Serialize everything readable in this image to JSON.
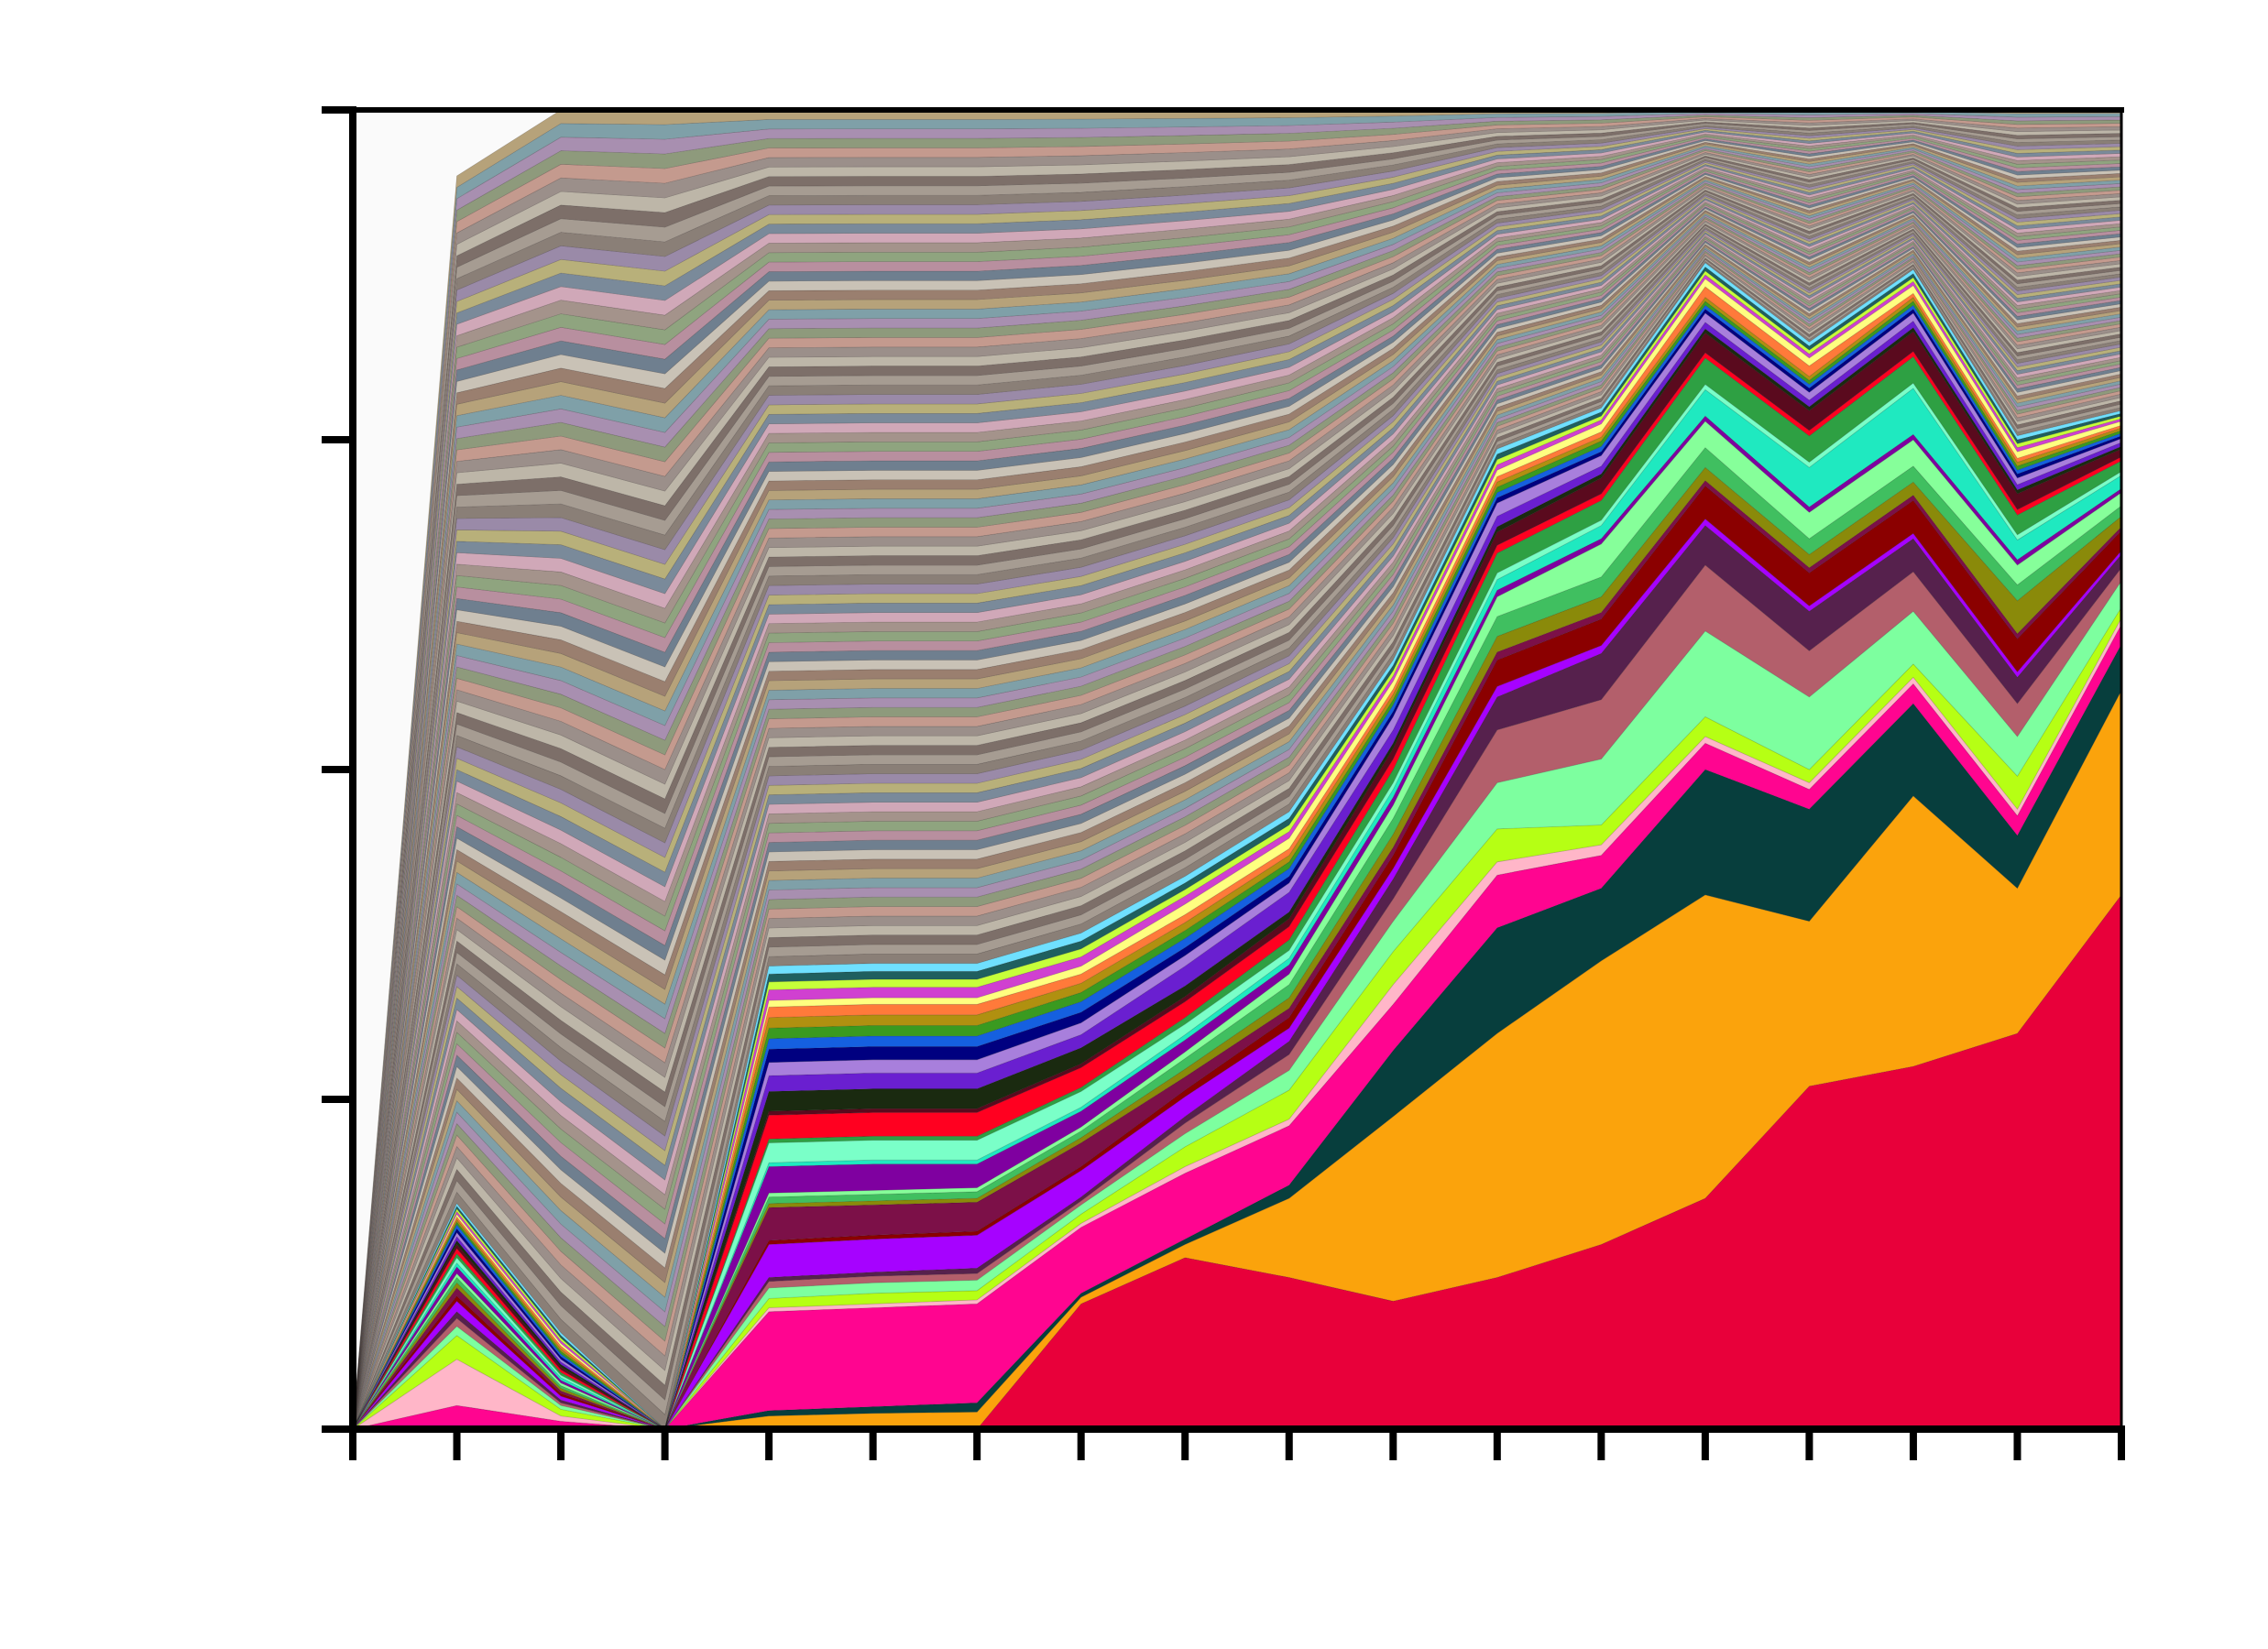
{
  "chart_data": {
    "type": "area",
    "stacking": "percent",
    "title": "",
    "xlabel": "",
    "ylabel": "",
    "x": [
      0,
      1,
      2,
      3,
      4,
      5,
      6,
      7,
      8,
      9,
      10,
      11,
      12,
      13,
      14,
      15,
      16,
      17
    ],
    "ylim": [
      0,
      100
    ],
    "y_ticks": [
      0,
      25,
      50,
      75,
      100
    ],
    "x_tick_labels_shown": false,
    "y_tick_labels_shown": false,
    "grid": false,
    "legend": "none",
    "series": [
      {
        "color": "#e8003a",
        "values": [
          0,
          0,
          0,
          0,
          0,
          0,
          0,
          9.5,
          13.0,
          11.5,
          9.7,
          11.5,
          14.0,
          17.5,
          26.0,
          27.5,
          30.0,
          40.5
        ]
      },
      {
        "color": "#fba30c",
        "values": [
          0,
          0,
          0,
          0,
          1.0,
          1.2,
          1.3,
          0.5,
          1.0,
          6.0,
          14.0,
          18.5,
          21.5,
          23.0,
          12.5,
          20.5,
          11.0,
          15.5
        ]
      },
      {
        "color": "#073e3d",
        "values": [
          0,
          0,
          0,
          0,
          0.4,
          0.5,
          0.7,
          0.3,
          0.4,
          1.0,
          5.0,
          8.0,
          5.5,
          9.5,
          8.5,
          7.0,
          4.0,
          3.5
        ]
      },
      {
        "color": "#ff0590",
        "values": [
          0,
          1.8,
          0.6,
          0,
          7.5,
          7.5,
          7.5,
          5.0,
          5.0,
          4.5,
          3.5,
          4.0,
          2.5,
          2.0,
          1.5,
          1.5,
          1.5,
          1.5
        ]
      },
      {
        "color": "#ffb6c8",
        "values": [
          0,
          3.5,
          0.4,
          0,
          0.3,
          0.3,
          0.3,
          0.3,
          0.5,
          0.5,
          1.5,
          1.0,
          0.8,
          0.5,
          0.5,
          0.5,
          0.5,
          0.5
        ]
      },
      {
        "color": "#b6ff14",
        "values": [
          0,
          1.8,
          0.5,
          0,
          0.7,
          0.8,
          0.7,
          0.7,
          1.5,
          2.2,
          2.5,
          2.5,
          1.5,
          1.5,
          1.0,
          1.0,
          2.5,
          0.8
        ]
      },
      {
        "color": "#7dff9f",
        "values": [
          0,
          0.7,
          0.3,
          0,
          0.8,
          0.8,
          0.8,
          0.7,
          1.0,
          1.5,
          2.3,
          3.5,
          5.0,
          6.5,
          5.5,
          4.0,
          3.0,
          2.0
        ]
      },
      {
        "color": "#b35f6b",
        "values": [
          0,
          0.6,
          0.2,
          0,
          0.5,
          0.5,
          0.5,
          0.3,
          0.8,
          1.2,
          1.7,
          4.0,
          4.5,
          5.0,
          3.5,
          3.0,
          2.5,
          1.0
        ]
      },
      {
        "color": "#56214d",
        "values": [
          0,
          0.5,
          0.2,
          0,
          0.3,
          0.3,
          0.4,
          0.3,
          0.5,
          1.0,
          1.5,
          2.5,
          3.5,
          3.0,
          3.0,
          2.5,
          2.0,
          1.0
        ]
      },
      {
        "color": "#a602ff",
        "values": [
          0,
          0.8,
          0.3,
          0,
          2.5,
          2.5,
          2.5,
          2.0,
          1.5,
          1.0,
          0.8,
          0.8,
          0.6,
          0.5,
          0.4,
          0.4,
          0.4,
          0.3
        ]
      },
      {
        "color": "#8b0000",
        "values": [
          0,
          0.4,
          0.2,
          0,
          0.3,
          0.3,
          0.3,
          0.3,
          0.5,
          0.8,
          1.0,
          2.0,
          2.0,
          2.5,
          2.5,
          2.5,
          2.5,
          1.5
        ]
      },
      {
        "color": "#7c1048",
        "values": [
          0,
          0.6,
          0.2,
          0,
          2.5,
          2.3,
          2.2,
          1.8,
          1.0,
          0.7,
          0.6,
          0.6,
          0.5,
          0.4,
          0.4,
          0.4,
          0.4,
          0.3
        ]
      },
      {
        "color": "#8a8a0a",
        "values": [
          0,
          0.4,
          0.2,
          0,
          0.3,
          0.3,
          0.3,
          0.4,
          0.6,
          0.8,
          1.0,
          1.2,
          1.2,
          1.0,
          1.0,
          1.0,
          2.5,
          0.8
        ]
      },
      {
        "color": "#40bf60",
        "values": [
          0,
          0.4,
          0.2,
          0,
          0.5,
          0.5,
          0.5,
          0.5,
          0.8,
          1.0,
          1.2,
          1.5,
          1.5,
          1.5,
          1.2,
          1.2,
          1.2,
          0.8
        ]
      },
      {
        "color": "#86ff9a",
        "values": [
          0,
          0.3,
          0.2,
          0,
          0.3,
          0.3,
          0.3,
          0.3,
          0.5,
          0.8,
          1.0,
          1.5,
          2.5,
          2.0,
          2.0,
          2.0,
          1.5,
          1.0
        ]
      },
      {
        "color": "#7f00a0",
        "values": [
          0,
          0.5,
          0.2,
          0,
          2.0,
          2.0,
          1.8,
          1.2,
          0.9,
          0.7,
          0.6,
          0.5,
          0.4,
          0.4,
          0.4,
          0.4,
          0.4,
          0.3
        ]
      },
      {
        "color": "#1fe9c0",
        "values": [
          0,
          0.3,
          0.2,
          0,
          0.3,
          0.3,
          0.3,
          0.3,
          0.4,
          0.5,
          0.6,
          0.8,
          1.0,
          2.0,
          3.0,
          3.5,
          1.5,
          1.0
        ]
      },
      {
        "color": "#7affc8",
        "values": [
          0,
          0.4,
          0.2,
          0,
          1.5,
          1.5,
          1.5,
          1.2,
          0.8,
          0.6,
          0.5,
          0.5,
          0.4,
          0.4,
          0.4,
          0.4,
          0.4,
          0.3
        ]
      },
      {
        "color": "#2ea043",
        "values": [
          0,
          0.3,
          0.2,
          0,
          0.3,
          0.3,
          0.3,
          0.3,
          0.5,
          0.8,
          1.0,
          1.5,
          1.5,
          2.0,
          2.0,
          2.0,
          1.5,
          0.8
        ]
      },
      {
        "color": "#ff0020",
        "values": [
          0,
          0.4,
          0.2,
          0,
          1.8,
          1.8,
          1.8,
          1.5,
          1.2,
          1.0,
          0.8,
          0.6,
          0.5,
          0.4,
          0.4,
          0.4,
          0.4,
          0.3
        ]
      },
      {
        "color": "#5a0a1e",
        "values": [
          0,
          0.3,
          0.2,
          0,
          0.3,
          0.3,
          0.3,
          0.3,
          0.4,
          0.6,
          0.8,
          1.0,
          1.2,
          1.5,
          1.5,
          1.5,
          1.2,
          0.6
        ]
      },
      {
        "color": "#1a2a10",
        "values": [
          0,
          0.3,
          0.2,
          0,
          1.5,
          1.5,
          1.5,
          1.2,
          0.8,
          0.5,
          0.4,
          0.4,
          0.3,
          0.3,
          0.3,
          0.3,
          0.3,
          0.2
        ]
      },
      {
        "color": "#6a1fd0",
        "values": [
          0,
          0.3,
          0.2,
          0,
          1.2,
          1.2,
          1.2,
          1.0,
          1.5,
          1.5,
          1.0,
          0.8,
          0.6,
          0.5,
          0.5,
          0.5,
          0.4,
          0.3
        ]
      },
      {
        "color": "#a87fdc",
        "values": [
          0,
          0.3,
          0.2,
          0,
          1.0,
          1.0,
          1.0,
          0.9,
          0.8,
          0.7,
          1.0,
          1.0,
          0.8,
          0.7,
          0.6,
          0.6,
          0.5,
          0.3
        ]
      },
      {
        "color": "#000080",
        "values": [
          0,
          0.3,
          0.2,
          0,
          1.0,
          1.0,
          1.0,
          0.8,
          0.6,
          0.5,
          0.4,
          0.4,
          0.3,
          0.3,
          0.3,
          0.3,
          0.3,
          0.2
        ]
      },
      {
        "color": "#1560e0",
        "values": [
          0,
          0.3,
          0.2,
          0,
          0.8,
          0.8,
          0.8,
          0.8,
          0.7,
          0.6,
          0.5,
          0.4,
          0.4,
          0.3,
          0.3,
          0.3,
          0.3,
          0.2
        ]
      },
      {
        "color": "#3a9a20",
        "values": [
          0,
          0.2,
          0.2,
          0,
          0.8,
          0.8,
          0.8,
          0.7,
          0.6,
          0.5,
          0.4,
          0.4,
          0.4,
          0.3,
          0.3,
          0.3,
          0.3,
          0.2
        ]
      },
      {
        "color": "#b09010",
        "values": [
          0,
          0.2,
          0.2,
          0,
          0.8,
          0.8,
          0.8,
          0.7,
          0.6,
          0.5,
          0.4,
          0.4,
          0.3,
          0.3,
          0.3,
          0.3,
          0.3,
          0.2
        ]
      },
      {
        "color": "#ff7a3a",
        "values": [
          0,
          0.2,
          0.2,
          0,
          0.8,
          0.8,
          0.8,
          0.7,
          0.6,
          0.5,
          0.4,
          0.4,
          0.4,
          0.8,
          0.8,
          0.3,
          0.3,
          0.2
        ]
      },
      {
        "color": "#ffff80",
        "values": [
          0,
          0.2,
          0.2,
          0,
          0.5,
          0.5,
          0.5,
          0.6,
          0.8,
          0.8,
          0.6,
          0.5,
          0.6,
          0.6,
          0.6,
          0.6,
          0.5,
          0.3
        ]
      },
      {
        "color": "#d040d0",
        "values": [
          0,
          0.2,
          0.2,
          0,
          0.8,
          0.8,
          0.8,
          0.7,
          0.6,
          0.5,
          0.4,
          0.4,
          0.3,
          0.3,
          0.3,
          0.3,
          0.3,
          0.2
        ]
      },
      {
        "color": "#c6ff3a",
        "values": [
          0,
          0.2,
          0.2,
          0,
          0.6,
          0.6,
          0.6,
          0.6,
          0.5,
          0.5,
          0.4,
          0.4,
          0.3,
          0.3,
          0.3,
          0.3,
          0.3,
          0.2
        ]
      },
      {
        "color": "#1f5f5f",
        "values": [
          0,
          0.2,
          0.2,
          0,
          0.6,
          0.6,
          0.6,
          0.6,
          0.5,
          0.5,
          0.4,
          0.4,
          0.3,
          0.3,
          0.3,
          0.3,
          0.3,
          0.2
        ]
      },
      {
        "color": "#6fe0ff",
        "values": [
          0,
          0.2,
          0.2,
          0,
          0.6,
          0.6,
          0.6,
          0.6,
          0.5,
          0.5,
          0.4,
          0.4,
          0.3,
          0.3,
          0.3,
          0.3,
          0.3,
          0.2
        ]
      }
    ],
    "background_band": {
      "colors": [
        "#8a7f77",
        "#a69c92",
        "#7d6f69",
        "#bdb6a8",
        "#9b8f8a",
        "#c49a8e",
        "#8e9a7c",
        "#a88fb0",
        "#7fa0a8",
        "#b6a27a",
        "#9a7f6f",
        "#c9c2b6",
        "#6f7f8f",
        "#b88f9f",
        "#8fa47f",
        "#a4938b",
        "#d0a8b8",
        "#7a8a9a",
        "#b8b07a",
        "#9a8aa8"
      ],
      "strips": 90
    }
  }
}
